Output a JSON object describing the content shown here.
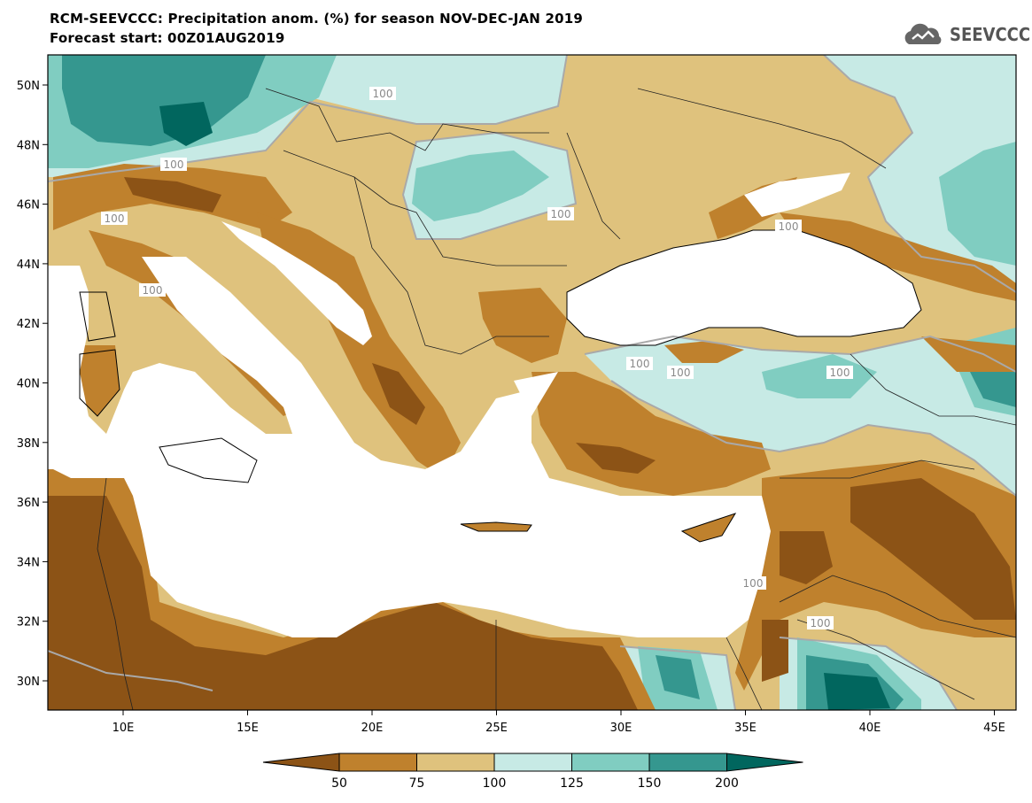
{
  "header": {
    "title": "RCM-SEEVCCC: Precipitation anom. (%) for season NOV-DEC-JAN 2019",
    "subtitle": "Forecast start: 00Z01AUG2019"
  },
  "logo": {
    "text": "SEEVCCC",
    "icon": "cloud-icon"
  },
  "map": {
    "lon_ticks": [
      "10E",
      "15E",
      "20E",
      "25E",
      "30E",
      "35E",
      "40E",
      "45E"
    ],
    "lat_ticks": [
      "50N",
      "48N",
      "46N",
      "44N",
      "42N",
      "40N",
      "38N",
      "36N",
      "34N",
      "32N",
      "30N"
    ],
    "contour_labels": [
      "100",
      "100",
      "100",
      "100",
      "100",
      "100",
      "100",
      "100",
      "100",
      "100",
      "100"
    ],
    "colors": {
      "land_mask": "#ffffff",
      "lt50": "#8c5316",
      "50_75": "#bf812d",
      "75_100": "#dfc27d",
      "100_125": "#c7eae5",
      "125_150": "#80cdc1",
      "150_200": "#35978f",
      "gt200": "#01665e"
    }
  },
  "colorbar": {
    "labels": [
      "50",
      "75",
      "100",
      "125",
      "150",
      "200"
    ],
    "colors": [
      "#8c5316",
      "#bf812d",
      "#dfc27d",
      "#c7eae5",
      "#80cdc1",
      "#35978f",
      "#01665e"
    ]
  }
}
